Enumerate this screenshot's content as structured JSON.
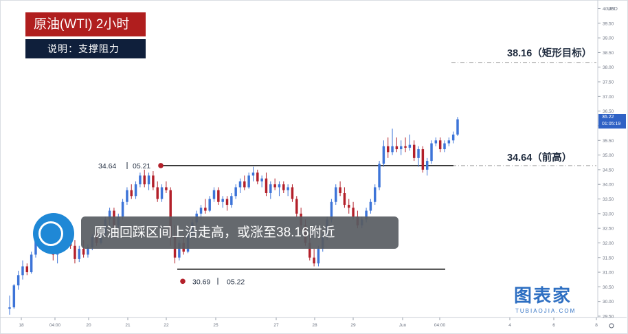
{
  "header": {
    "title": "原油(WTI)  2小时",
    "note": "说明：支撑阻力",
    "caption": "原油回踩区间上沿走高，或涨至38.16附近"
  },
  "watermark": {
    "brand": "图表家",
    "site": "TUBIAOJIA.COM"
  },
  "colors": {
    "up": "#3d74d8",
    "down": "#b3202a",
    "title_bg": "#b01e1e",
    "note_bg": "#0f1f3b"
  },
  "chart_data": {
    "type": "candlestick",
    "currency": "USD",
    "ylim": [
      29.5,
      40
    ],
    "y_ticks": [
      "29.50",
      "30.00",
      "30.50",
      "31.00",
      "31.50",
      "32.00",
      "32.50",
      "33.00",
      "33.50",
      "34.00",
      "34.50",
      "35.00",
      "35.50",
      "36.00",
      "36.50",
      "37.00",
      "37.50",
      "38.00",
      "38.50",
      "39.00",
      "39.50",
      "40.00"
    ],
    "x_ticks": [
      "18",
      "04:00",
      "20",
      "21",
      "22",
      "25",
      "27",
      "28",
      "29",
      "Jun",
      "04:00",
      "4",
      "6",
      "8"
    ],
    "last_price": "36.22",
    "countdown": "01:05:19",
    "levels": [
      {
        "value": 38.16,
        "label": "38.16（矩形目标）",
        "style": "dashdot"
      },
      {
        "value": 34.64,
        "label": "34.64（前高）",
        "style": "dashdot"
      },
      {
        "value": 34.64,
        "style": "solid"
      },
      {
        "value": 31.1,
        "style": "solid"
      }
    ],
    "markers": [
      {
        "price": 34.64,
        "price_label": "34.64",
        "date_label": "05.21"
      },
      {
        "price": 30.69,
        "price_label": "30.69",
        "date_label": "05.22"
      }
    ],
    "candles": [
      [
        29.75,
        30.2,
        29.55,
        29.8
      ],
      [
        29.8,
        30.6,
        29.75,
        30.55
      ],
      [
        30.55,
        31.05,
        30.4,
        30.9
      ],
      [
        30.9,
        31.4,
        30.75,
        31.2
      ],
      [
        31.2,
        31.3,
        30.9,
        31.0
      ],
      [
        31.0,
        31.7,
        30.95,
        31.6
      ],
      [
        31.6,
        32.2,
        31.5,
        32.1
      ],
      [
        32.1,
        32.6,
        31.9,
        32.5
      ],
      [
        32.5,
        32.9,
        32.3,
        32.8
      ],
      [
        32.8,
        33.0,
        32.2,
        32.4
      ],
      [
        32.4,
        32.6,
        31.4,
        31.6
      ],
      [
        31.6,
        32.0,
        31.3,
        31.9
      ],
      [
        31.9,
        32.3,
        31.7,
        32.1
      ],
      [
        32.1,
        32.4,
        31.9,
        32.2
      ],
      [
        32.2,
        32.5,
        31.8,
        31.9
      ],
      [
        31.9,
        32.1,
        31.3,
        31.45
      ],
      [
        31.45,
        31.9,
        31.35,
        31.8
      ],
      [
        31.8,
        32.1,
        31.5,
        31.6
      ],
      [
        31.6,
        31.95,
        31.5,
        31.85
      ],
      [
        31.85,
        32.3,
        31.75,
        32.2
      ],
      [
        32.2,
        32.4,
        31.9,
        32.0
      ],
      [
        32.0,
        32.4,
        31.95,
        32.3
      ],
      [
        32.3,
        32.9,
        32.2,
        32.8
      ],
      [
        32.8,
        33.2,
        32.6,
        33.1
      ],
      [
        33.1,
        33.2,
        32.5,
        32.6
      ],
      [
        32.6,
        33.0,
        32.5,
        32.9
      ],
      [
        32.9,
        33.5,
        32.8,
        33.4
      ],
      [
        33.4,
        33.9,
        33.3,
        33.8
      ],
      [
        33.8,
        34.0,
        33.5,
        33.6
      ],
      [
        33.6,
        34.1,
        33.5,
        34.0
      ],
      [
        34.0,
        34.4,
        33.9,
        34.3
      ],
      [
        34.3,
        34.5,
        33.9,
        34.0
      ],
      [
        34.0,
        34.4,
        33.8,
        34.3
      ],
      [
        34.3,
        34.45,
        33.8,
        33.9
      ],
      [
        33.9,
        34.1,
        33.4,
        33.5
      ],
      [
        33.5,
        34.0,
        33.4,
        33.9
      ],
      [
        33.9,
        34.1,
        33.7,
        33.8
      ],
      [
        33.8,
        33.9,
        31.9,
        32.2
      ],
      [
        32.2,
        32.6,
        31.3,
        31.5
      ],
      [
        31.5,
        32.1,
        31.4,
        32.0
      ],
      [
        32.0,
        32.3,
        31.6,
        31.7
      ],
      [
        31.7,
        32.4,
        31.65,
        32.3
      ],
      [
        32.3,
        32.8,
        32.2,
        32.7
      ],
      [
        32.7,
        33.1,
        32.6,
        33.0
      ],
      [
        33.0,
        33.3,
        32.8,
        33.2
      ],
      [
        33.2,
        33.5,
        33.0,
        33.1
      ],
      [
        33.1,
        33.6,
        33.05,
        33.5
      ],
      [
        33.5,
        33.9,
        33.4,
        33.8
      ],
      [
        33.8,
        33.9,
        33.3,
        33.4
      ],
      [
        33.4,
        33.6,
        33.2,
        33.5
      ],
      [
        33.5,
        33.6,
        33.1,
        33.3
      ],
      [
        33.3,
        33.7,
        33.2,
        33.6
      ],
      [
        33.6,
        34.0,
        33.5,
        33.9
      ],
      [
        33.9,
        34.2,
        33.7,
        34.1
      ],
      [
        34.1,
        34.3,
        33.8,
        33.9
      ],
      [
        33.9,
        34.4,
        33.85,
        34.3
      ],
      [
        34.3,
        34.6,
        34.1,
        34.4
      ],
      [
        34.4,
        34.5,
        34.0,
        34.1
      ],
      [
        34.1,
        34.3,
        33.9,
        34.2
      ],
      [
        34.2,
        34.4,
        33.6,
        33.7
      ],
      [
        33.7,
        34.1,
        33.5,
        34.0
      ],
      [
        34.0,
        34.2,
        33.8,
        33.9
      ],
      [
        33.9,
        34.1,
        33.6,
        34.0
      ],
      [
        34.0,
        34.1,
        33.7,
        33.8
      ],
      [
        33.8,
        34.0,
        33.6,
        33.9
      ],
      [
        33.9,
        34.0,
        33.4,
        33.5
      ],
      [
        33.5,
        33.6,
        32.9,
        33.0
      ],
      [
        33.0,
        33.2,
        32.4,
        32.6
      ],
      [
        32.6,
        32.8,
        31.9,
        32.0
      ],
      [
        32.0,
        32.3,
        31.4,
        31.5
      ],
      [
        31.5,
        31.8,
        31.2,
        31.3
      ],
      [
        31.3,
        31.9,
        31.2,
        31.8
      ],
      [
        31.8,
        32.3,
        31.7,
        32.2
      ],
      [
        32.2,
        32.9,
        32.1,
        32.8
      ],
      [
        32.8,
        33.5,
        32.7,
        33.4
      ],
      [
        33.4,
        34.0,
        33.3,
        33.9
      ],
      [
        33.9,
        34.1,
        33.6,
        33.7
      ],
      [
        33.7,
        33.9,
        33.2,
        33.3
      ],
      [
        33.3,
        33.5,
        33.0,
        33.2
      ],
      [
        33.2,
        33.4,
        32.8,
        32.9
      ],
      [
        32.9,
        33.1,
        32.5,
        32.6
      ],
      [
        32.6,
        32.9,
        32.5,
        32.8
      ],
      [
        32.8,
        33.2,
        32.7,
        33.1
      ],
      [
        33.1,
        33.5,
        33.0,
        33.4
      ],
      [
        33.4,
        34.0,
        33.3,
        33.9
      ],
      [
        33.9,
        34.8,
        33.8,
        34.7
      ],
      [
        34.7,
        35.5,
        34.6,
        35.3
      ],
      [
        35.3,
        35.6,
        34.9,
        35.1
      ],
      [
        35.1,
        35.9,
        35.0,
        35.3
      ],
      [
        35.3,
        35.6,
        35.1,
        35.2
      ],
      [
        35.2,
        35.5,
        35.0,
        35.3
      ],
      [
        35.3,
        35.6,
        35.1,
        35.25
      ],
      [
        35.25,
        35.7,
        35.15,
        35.35
      ],
      [
        35.35,
        35.5,
        34.8,
        34.9
      ],
      [
        34.9,
        35.3,
        34.6,
        35.2
      ],
      [
        35.2,
        35.3,
        34.4,
        34.5
      ],
      [
        34.5,
        34.9,
        34.3,
        34.8
      ],
      [
        34.8,
        35.5,
        34.7,
        35.4
      ],
      [
        35.4,
        35.6,
        35.3,
        35.5
      ],
      [
        35.5,
        35.6,
        35.1,
        35.2
      ],
      [
        35.2,
        35.5,
        35.1,
        35.4
      ],
      [
        35.4,
        35.6,
        35.3,
        35.5
      ],
      [
        35.5,
        35.8,
        35.4,
        35.7
      ],
      [
        35.7,
        36.3,
        35.65,
        36.22
      ]
    ]
  }
}
